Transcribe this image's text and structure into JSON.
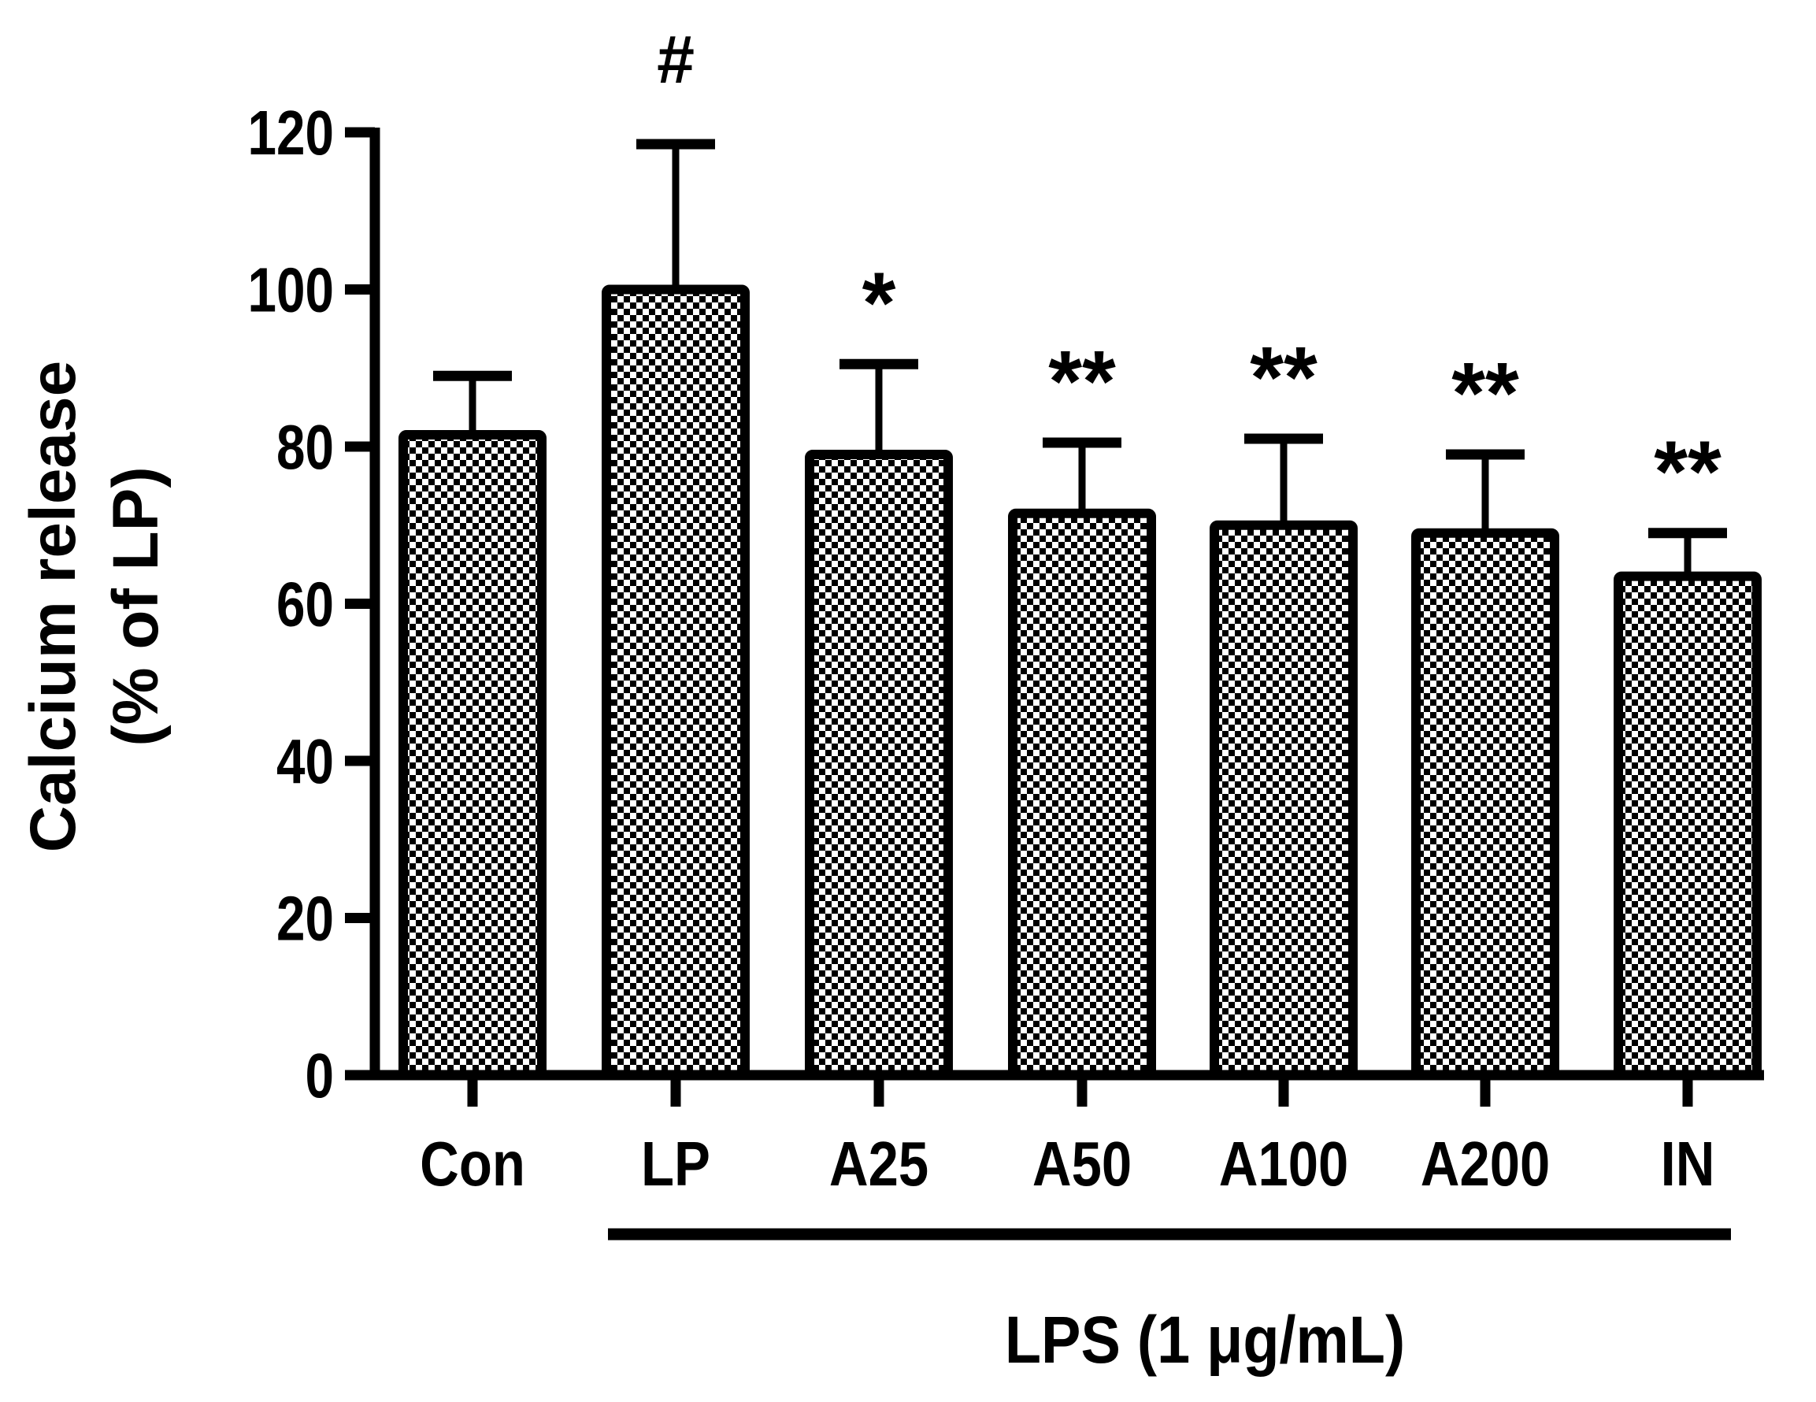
{
  "chart_data": {
    "type": "bar",
    "title": "",
    "ylabel": "Calcium release\n(% of LP)",
    "ylabel_lines": [
      "Calcium release",
      "(% of LP)"
    ],
    "xlabel": "LPS (1 μg/mL)",
    "categories": [
      "Con",
      "LP",
      "A25",
      "A50",
      "A100",
      "A200",
      "IN"
    ],
    "values": [
      81.5,
      100,
      79,
      71.5,
      70,
      69,
      63.5
    ],
    "error_upper": [
      89,
      118.5,
      90.5,
      80.5,
      81,
      79,
      69
    ],
    "significance": [
      "",
      "#",
      "*",
      "**",
      "**",
      "**",
      "**"
    ],
    "ylim": [
      0,
      120
    ],
    "yticks": [
      0,
      20,
      40,
      60,
      80,
      100,
      120
    ],
    "grid": false,
    "legend": null,
    "bracket": {
      "label": "LPS (1 μg/mL)",
      "from": "LP",
      "to": "IN"
    },
    "bar_fill": "checkerboard",
    "colors": {
      "bar_edge": "#000000",
      "fill_a": "#000000",
      "fill_b": "#ffffff"
    }
  }
}
